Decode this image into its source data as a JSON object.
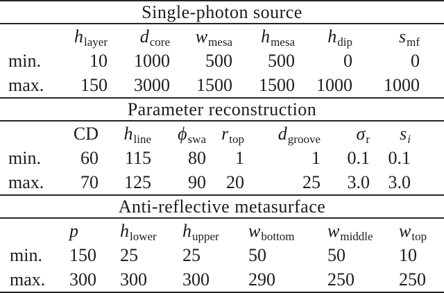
{
  "colors": {
    "background": "#ffffff",
    "text": "#1c1c1c",
    "rule": "#242424"
  },
  "tables": [
    {
      "title": "Single-photon source",
      "alignment": "right",
      "headers": [
        {
          "base": "h",
          "sub": "layer",
          "base_style": "italic",
          "sub_style": "normal"
        },
        {
          "base": "d",
          "sub": "core",
          "base_style": "italic",
          "sub_style": "normal"
        },
        {
          "base": "w",
          "sub": "mesa",
          "base_style": "italic",
          "sub_style": "normal"
        },
        {
          "base": "h",
          "sub": "mesa",
          "base_style": "italic",
          "sub_style": "normal"
        },
        {
          "base": "h",
          "sub": "dip",
          "base_style": "italic",
          "sub_style": "normal"
        },
        {
          "base": "s",
          "sub": "mf",
          "base_style": "italic",
          "sub_style": "normal"
        }
      ],
      "rows": [
        {
          "label": "min.",
          "values": [
            "10",
            "1000",
            "500",
            "500",
            "0",
            "0"
          ]
        },
        {
          "label": "max.",
          "values": [
            "150",
            "3000",
            "1500",
            "1500",
            "1000",
            "1000"
          ]
        }
      ]
    },
    {
      "title": "Parameter reconstruction",
      "alignment": "right",
      "headers": [
        {
          "base": "CD",
          "sub": "",
          "base_style": "normal",
          "sub_style": "normal"
        },
        {
          "base": "h",
          "sub": "line",
          "base_style": "italic",
          "sub_style": "normal"
        },
        {
          "base": "ϕ",
          "sub": "swa",
          "base_style": "italic",
          "sub_style": "normal"
        },
        {
          "base": "r",
          "sub": "top",
          "base_style": "italic",
          "sub_style": "normal"
        },
        {
          "base": "d",
          "sub": "groove",
          "base_style": "italic",
          "sub_style": "normal"
        },
        {
          "base": "σ",
          "sub": "r",
          "base_style": "italic",
          "sub_style": "normal"
        },
        {
          "base": "s",
          "sub": "i",
          "base_style": "italic",
          "sub_style": "italic"
        }
      ],
      "rows": [
        {
          "label": "min.",
          "values": [
            "60",
            "115",
            "80",
            "1",
            "1",
            "0.1",
            "0.1"
          ]
        },
        {
          "label": "max.",
          "values": [
            "70",
            "125",
            "90",
            "20",
            "25",
            "3.0",
            "3.0"
          ]
        }
      ]
    },
    {
      "title": "Anti-reflective metasurface",
      "alignment": "left",
      "headers": [
        {
          "base": "p",
          "sub": "",
          "base_style": "italic",
          "sub_style": "normal"
        },
        {
          "base": "h",
          "sub": "lower",
          "base_style": "italic",
          "sub_style": "normal"
        },
        {
          "base": "h",
          "sub": "upper",
          "base_style": "italic",
          "sub_style": "normal"
        },
        {
          "base": "w",
          "sub": "bottom",
          "base_style": "italic",
          "sub_style": "normal"
        },
        {
          "base": "w",
          "sub": "middle",
          "base_style": "italic",
          "sub_style": "normal"
        },
        {
          "base": "w",
          "sub": "top",
          "base_style": "italic",
          "sub_style": "normal"
        }
      ],
      "rows": [
        {
          "label": "min.",
          "values": [
            "150",
            "25",
            "25",
            "50",
            "50",
            "10"
          ]
        },
        {
          "label": "max.",
          "values": [
            "300",
            "300",
            "300",
            "290",
            "250",
            "250"
          ]
        }
      ]
    }
  ]
}
